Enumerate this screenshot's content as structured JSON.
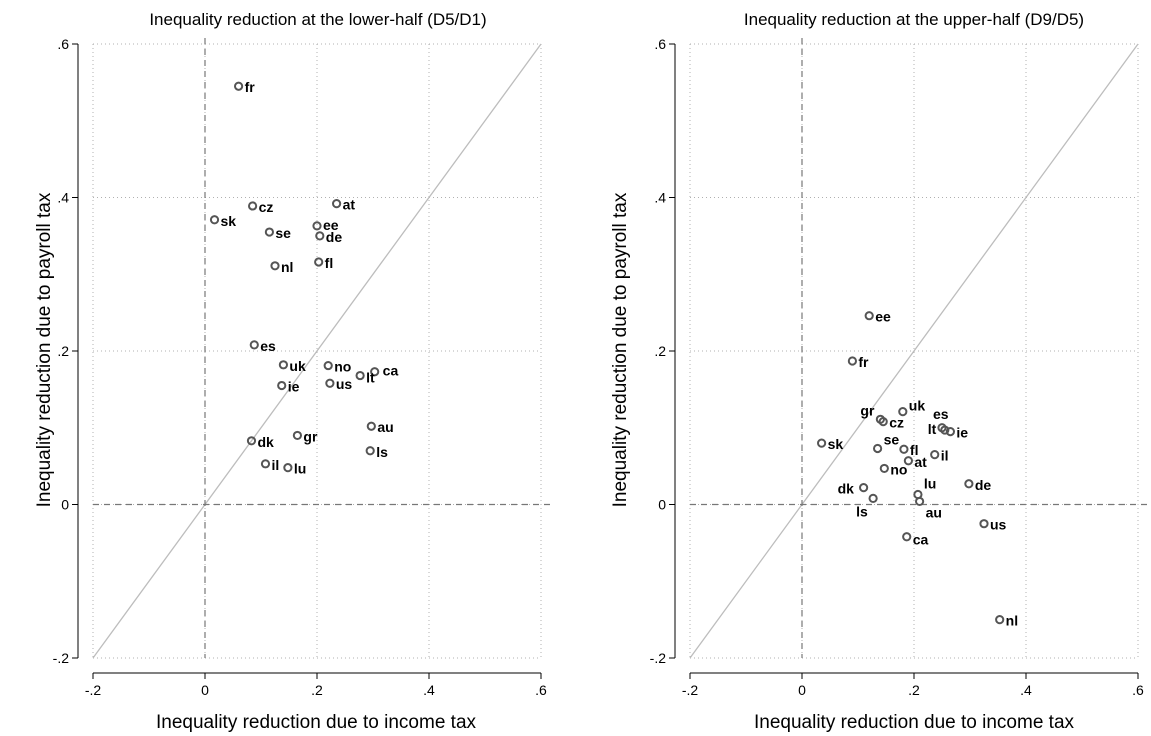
{
  "chart_data": [
    {
      "type": "scatter",
      "title": "Inequality reduction at the lower-half (D5/D1)",
      "xlabel": "Inequality reduction due to income tax",
      "ylabel": "Inequality reduction due to payroll tax",
      "xlim": [
        -0.2,
        0.6
      ],
      "ylim": [
        -0.2,
        0.6
      ],
      "xticks": [
        -0.2,
        0,
        0.2,
        0.4,
        0.6
      ],
      "yticks": [
        -0.2,
        0,
        0.2,
        0.4,
        0.6
      ],
      "xtick_labels": [
        "-.2",
        "0",
        ".2",
        ".4",
        ".6"
      ],
      "ytick_labels": [
        "-.2",
        "0",
        ".2",
        ".4",
        ".6"
      ],
      "grid": "dotted",
      "reference_lines": [
        "x=0 dashed",
        "y=0 dashed",
        "y=x diagonal"
      ],
      "points": [
        {
          "label": "fr",
          "x": 0.06,
          "y": 0.545
        },
        {
          "label": "at",
          "x": 0.235,
          "y": 0.392
        },
        {
          "label": "cz",
          "x": 0.085,
          "y": 0.389
        },
        {
          "label": "sk",
          "x": 0.017,
          "y": 0.371
        },
        {
          "label": "ee",
          "x": 0.2,
          "y": 0.363
        },
        {
          "label": "se",
          "x": 0.115,
          "y": 0.355
        },
        {
          "label": "de",
          "x": 0.205,
          "y": 0.35
        },
        {
          "label": "fl",
          "x": 0.203,
          "y": 0.316
        },
        {
          "label": "nl",
          "x": 0.125,
          "y": 0.311
        },
        {
          "label": "es",
          "x": 0.088,
          "y": 0.208
        },
        {
          "label": "uk",
          "x": 0.14,
          "y": 0.182
        },
        {
          "label": "no",
          "x": 0.22,
          "y": 0.181
        },
        {
          "label": "ca",
          "x": 0.303,
          "y": 0.173
        },
        {
          "label": "lt",
          "x": 0.277,
          "y": 0.168
        },
        {
          "label": "us",
          "x": 0.223,
          "y": 0.158
        },
        {
          "label": "ie",
          "x": 0.137,
          "y": 0.155
        },
        {
          "label": "au",
          "x": 0.297,
          "y": 0.102
        },
        {
          "label": "gr",
          "x": 0.165,
          "y": 0.09
        },
        {
          "label": "dk",
          "x": 0.083,
          "y": 0.083
        },
        {
          "label": "ls",
          "x": 0.295,
          "y": 0.07
        },
        {
          "label": "il",
          "x": 0.108,
          "y": 0.053
        },
        {
          "label": "lu",
          "x": 0.148,
          "y": 0.048
        }
      ]
    },
    {
      "type": "scatter",
      "title": "Inequality reduction at the upper-half (D9/D5)",
      "xlabel": "Inequality reduction due to income tax",
      "ylabel": "Inequality reduction due to payroll tax",
      "xlim": [
        -0.2,
        0.6
      ],
      "ylim": [
        -0.2,
        0.6
      ],
      "xticks": [
        -0.2,
        0,
        0.2,
        0.4,
        0.6
      ],
      "yticks": [
        -0.2,
        0,
        0.2,
        0.4,
        0.6
      ],
      "xtick_labels": [
        "-.2",
        "0",
        ".2",
        ".4",
        ".6"
      ],
      "ytick_labels": [
        "-.2",
        "0",
        ".2",
        ".4",
        ".6"
      ],
      "grid": "dotted",
      "reference_lines": [
        "x=0 dashed",
        "y=0 dashed",
        "y=x diagonal"
      ],
      "points": [
        {
          "label": "ee",
          "x": 0.12,
          "y": 0.246
        },
        {
          "label": "fr",
          "x": 0.09,
          "y": 0.187
        },
        {
          "label": "uk",
          "x": 0.18,
          "y": 0.121
        },
        {
          "label": "gr",
          "x": 0.14,
          "y": 0.111
        },
        {
          "label": "cz",
          "x": 0.145,
          "y": 0.108
        },
        {
          "label": "es",
          "x": 0.25,
          "y": 0.1
        },
        {
          "label": "lt",
          "x": 0.255,
          "y": 0.097
        },
        {
          "label": "ie",
          "x": 0.265,
          "y": 0.095
        },
        {
          "label": "sk",
          "x": 0.035,
          "y": 0.08
        },
        {
          "label": "se",
          "x": 0.135,
          "y": 0.073
        },
        {
          "label": "fl",
          "x": 0.182,
          "y": 0.072
        },
        {
          "label": "il",
          "x": 0.237,
          "y": 0.065
        },
        {
          "label": "at",
          "x": 0.19,
          "y": 0.057
        },
        {
          "label": "no",
          "x": 0.147,
          "y": 0.047
        },
        {
          "label": "de",
          "x": 0.298,
          "y": 0.027
        },
        {
          "label": "dk",
          "x": 0.11,
          "y": 0.022
        },
        {
          "label": "lu",
          "x": 0.207,
          "y": 0.013
        },
        {
          "label": "ls",
          "x": 0.127,
          "y": 0.008
        },
        {
          "label": "au",
          "x": 0.21,
          "y": 0.004
        },
        {
          "label": "us",
          "x": 0.325,
          "y": -0.025
        },
        {
          "label": "ca",
          "x": 0.187,
          "y": -0.042
        },
        {
          "label": "nl",
          "x": 0.353,
          "y": -0.15
        }
      ]
    }
  ],
  "colors": {
    "marker": "#555555",
    "grid": "#b0b0b0",
    "diagonal": "#bdbdbd",
    "reference_line": "#777777",
    "axis": "#000000"
  }
}
